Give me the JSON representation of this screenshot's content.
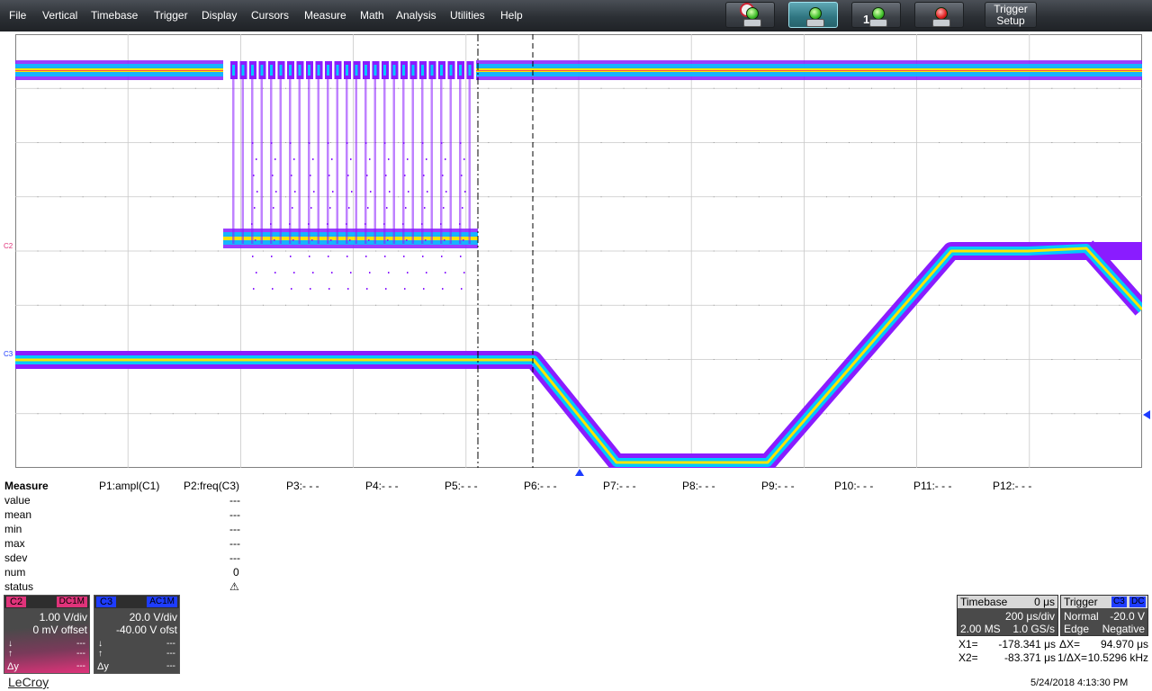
{
  "menu": [
    "File",
    "Vertical",
    "Timebase",
    "Trigger",
    "Display",
    "Cursors",
    "Measure",
    "Math",
    "Analysis",
    "Utilities",
    "Help"
  ],
  "toolbar": {
    "buttons": [
      {
        "name": "auto-trigger-button",
        "icon": "clock-traffic-light-icon"
      },
      {
        "name": "normal-trigger-button",
        "icon": "green-light-icon",
        "active": true
      },
      {
        "name": "single-trigger-button",
        "icon": "single-light-icon",
        "text": "1"
      },
      {
        "name": "stop-trigger-button",
        "icon": "red-light-icon"
      }
    ],
    "trigger_setup_line1": "Trigger",
    "trigger_setup_line2": "Setup"
  },
  "channels_on_grid": {
    "c2_label": "C2",
    "c3_label": "C3"
  },
  "colors": {
    "c2": "#e0337a",
    "c3": "#1e3cff",
    "persist_outer": "#8a1cff",
    "persist_inner": "#00d0ff",
    "persist_core": "#ffe400"
  },
  "measure": {
    "title": "Measure",
    "params": [
      "P1:ampl(C1)",
      "P2:freq(C3)",
      "P3:- - -",
      "P4:- - -",
      "P5:- - -",
      "P6:- - -",
      "P7:- - -",
      "P8:- - -",
      "P9:- - -",
      "P10:- - -",
      "P11:- - -",
      "P12:- - -"
    ],
    "rows": [
      {
        "label": "value",
        "p2": "---"
      },
      {
        "label": "mean",
        "p2": "---"
      },
      {
        "label": "min",
        "p2": "---"
      },
      {
        "label": "max",
        "p2": "---"
      },
      {
        "label": "sdev",
        "p2": "---"
      },
      {
        "label": "num",
        "p2": "0"
      },
      {
        "label": "status",
        "p2": "⚠"
      }
    ]
  },
  "c2_box": {
    "tag": "C2",
    "coupling": "DC1M",
    "vdiv": "1.00 V/div",
    "offset": "0 mV offset",
    "dy": "Δy",
    "dash": "---"
  },
  "c3_box": {
    "tag": "C3",
    "coupling": "AC1M",
    "vdiv": "20.0 V/div",
    "offset": "-40.00 V ofst",
    "dy": "Δy",
    "dash": "---"
  },
  "timebase": {
    "label": "Timebase",
    "delay": "0 μs",
    "tdiv": "200 μs/div",
    "samples": "2.00 MS",
    "rate": "1.0 GS/s"
  },
  "trigger": {
    "label": "Trigger",
    "source": "C3",
    "coupling": "DC",
    "mode": "Normal",
    "level": "-20.0 V",
    "type": "Edge",
    "slope": "Negative"
  },
  "cursors": {
    "x1_label": "X1=",
    "x1": "-178.341 μs",
    "dx_label": "ΔX=",
    "dx": "94.970 μs",
    "x2_label": "X2=",
    "x2": "-83.371 μs",
    "inv_label": "1/ΔX=",
    "inv": "10.5296 kHz"
  },
  "logo": "LeCroy",
  "datetime": "5/24/2018 4:13:30 PM"
}
